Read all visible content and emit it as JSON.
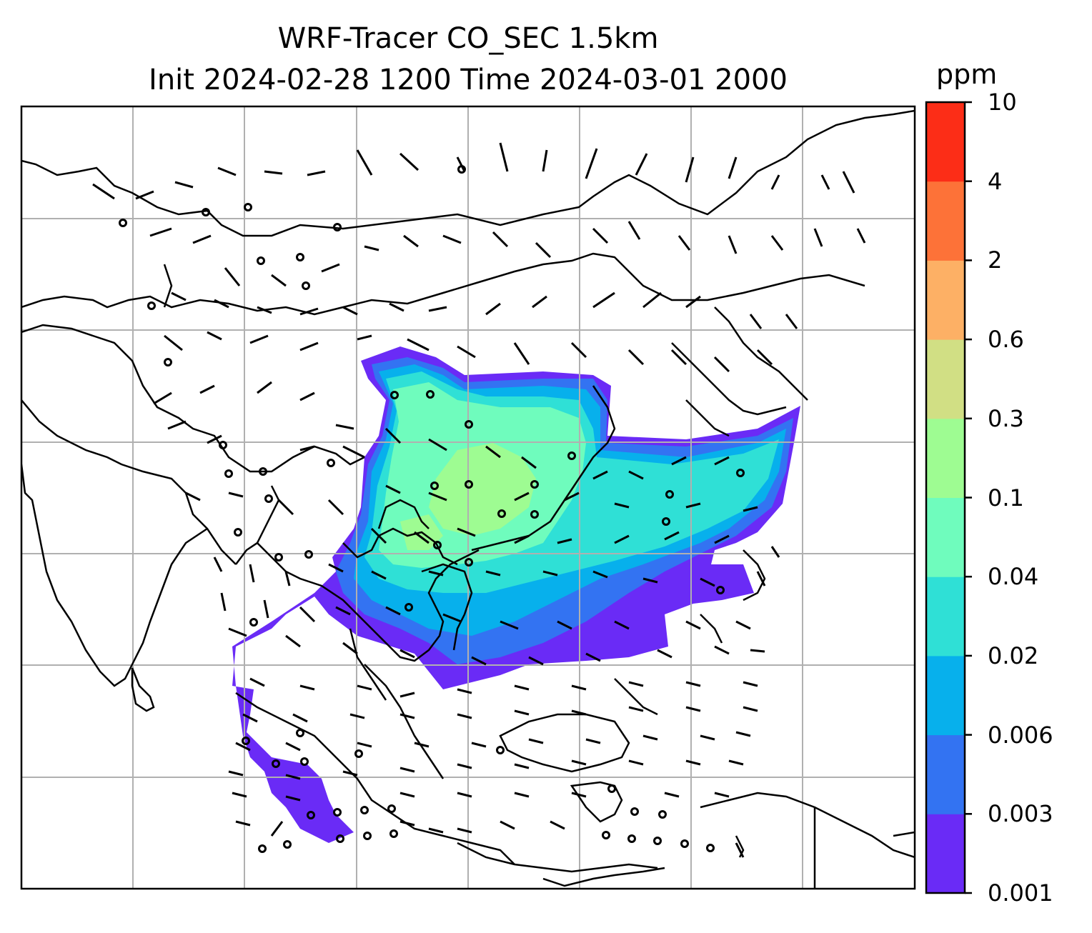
{
  "title": {
    "line1": "WRF-Tracer CO_SEC 1.5km",
    "line2": "Init 2024-02-28 1200 Time 2024-03-01 2000"
  },
  "colorbar": {
    "unit": "ppm",
    "ticks": [
      "10",
      "4",
      "2",
      "0.6",
      "0.3",
      "0.1",
      "0.04",
      "0.02",
      "0.006",
      "0.003",
      "0.001"
    ],
    "colors": [
      "#6a2bf6",
      "#3373f2",
      "#07b0ec",
      "#2fe0d6",
      "#6ffcbd",
      "#9efc92",
      "#d1df84",
      "#fdb065",
      "#fd7238",
      "#fc2d17"
    ]
  }
}
